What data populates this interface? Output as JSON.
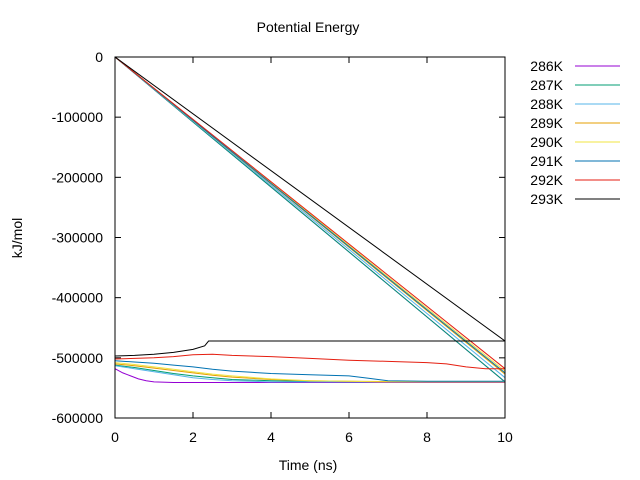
{
  "chart_data": {
    "type": "line",
    "title": "Potential Energy",
    "xlabel": "Time (ns)",
    "ylabel": "kJ/mol",
    "xlim": [
      0,
      10
    ],
    "ylim": [
      -600000,
      0
    ],
    "x_ticks": [
      "0",
      "2",
      "4",
      "6",
      "8",
      "10"
    ],
    "y_ticks": [
      "0",
      "-100000",
      "-200000",
      "-300000",
      "-400000",
      "-500000",
      "-600000"
    ],
    "legend_position": "outside-right",
    "grid": false,
    "series": [
      {
        "name": "286K",
        "color": "#9400d3",
        "trend": {
          "x": [
            0,
            0.2,
            0.4,
            0.6,
            0.8,
            1.0,
            1.5,
            2,
            3,
            4,
            5,
            6,
            8,
            10
          ],
          "y": [
            -518000,
            -525000,
            -530000,
            -535000,
            -538000,
            -540000,
            -541000,
            -541000,
            -541000,
            -541000,
            -541000,
            -541000,
            -541000,
            -541000
          ]
        },
        "diagonal": {
          "x": [
            0,
            10
          ],
          "y": [
            0,
            -540000
          ]
        }
      },
      {
        "name": "287K",
        "color": "#009e73",
        "trend": {
          "x": [
            0,
            0.5,
            1,
            1.5,
            2,
            2.5,
            3,
            4,
            5,
            6,
            8,
            10
          ],
          "y": [
            -512000,
            -516000,
            -521000,
            -526000,
            -530000,
            -533000,
            -536000,
            -538000,
            -539000,
            -540000,
            -540000,
            -540000
          ]
        },
        "diagonal": {
          "x": [
            0,
            10
          ],
          "y": [
            0,
            -540000
          ]
        }
      },
      {
        "name": "288K",
        "color": "#56b4e9",
        "trend": {
          "x": [
            0,
            0.5,
            1,
            1.5,
            2,
            2.5,
            3,
            4,
            5,
            6,
            8,
            10
          ],
          "y": [
            -513000,
            -518000,
            -523000,
            -528000,
            -533000,
            -536000,
            -538000,
            -540000,
            -540000,
            -540000,
            -540000,
            -540000
          ]
        },
        "diagonal": {
          "x": [
            0,
            10
          ],
          "y": [
            0,
            -533000
          ]
        }
      },
      {
        "name": "289K",
        "color": "#e69f00",
        "trend": {
          "x": [
            0,
            0.5,
            1,
            1.5,
            2,
            2.5,
            3,
            4,
            5,
            6,
            8,
            10
          ],
          "y": [
            -510000,
            -513000,
            -517000,
            -521000,
            -525000,
            -529000,
            -532000,
            -536000,
            -538000,
            -539000,
            -540000,
            -540000
          ]
        },
        "diagonal": {
          "x": [
            0,
            10
          ],
          "y": [
            0,
            -527000
          ]
        }
      },
      {
        "name": "290K",
        "color": "#f0e442",
        "trend": {
          "x": [
            0,
            0.5,
            1,
            1.5,
            2,
            2.5,
            3,
            4,
            5,
            6,
            6.8,
            7,
            8,
            10
          ],
          "y": [
            -508000,
            -511000,
            -515000,
            -519000,
            -523000,
            -527000,
            -530000,
            -535000,
            -538000,
            -539000,
            -540000,
            -540000,
            -540000,
            -540000
          ]
        },
        "diagonal": {
          "x": [
            0,
            10
          ],
          "y": [
            0,
            -522000
          ]
        }
      },
      {
        "name": "291K",
        "color": "#0072b2",
        "trend": {
          "x": [
            0,
            0.5,
            1,
            1.5,
            2,
            2.5,
            3,
            3.5,
            4,
            5,
            6,
            6.5,
            7,
            8,
            9,
            10
          ],
          "y": [
            -505000,
            -507000,
            -509000,
            -512000,
            -515000,
            -519000,
            -522000,
            -524000,
            -526000,
            -528000,
            -530000,
            -534000,
            -538000,
            -539000,
            -539000,
            -539000
          ]
        },
        "diagonal": {
          "x": [
            0,
            10
          ],
          "y": [
            0,
            -525000
          ]
        }
      },
      {
        "name": "292K",
        "color": "#e51e10",
        "trend": {
          "x": [
            0,
            0.5,
            1,
            1.5,
            2,
            2.5,
            3,
            4,
            5,
            6,
            7,
            8,
            8.5,
            9,
            9.5,
            10
          ],
          "y": [
            -502000,
            -501000,
            -500000,
            -498000,
            -495000,
            -494000,
            -496000,
            -498000,
            -501000,
            -504000,
            -506000,
            -508000,
            -510000,
            -515000,
            -518000,
            -518000
          ]
        },
        "diagonal": {
          "x": [
            0,
            10
          ],
          "y": [
            0,
            -518000
          ]
        }
      },
      {
        "name": "293K",
        "color": "#000000",
        "trend": {
          "x": [
            0,
            0.5,
            1,
            1.5,
            2,
            2.3,
            2.4,
            3,
            4,
            5,
            6,
            7,
            8,
            9,
            10
          ],
          "y": [
            -497000,
            -496000,
            -494000,
            -491000,
            -486000,
            -480000,
            -472000,
            -472000,
            -472000,
            -472000,
            -472000,
            -472000,
            -472000,
            -472000,
            -472000
          ]
        },
        "diagonal": {
          "x": [
            0,
            10
          ],
          "y": [
            0,
            -472000
          ]
        }
      }
    ]
  }
}
